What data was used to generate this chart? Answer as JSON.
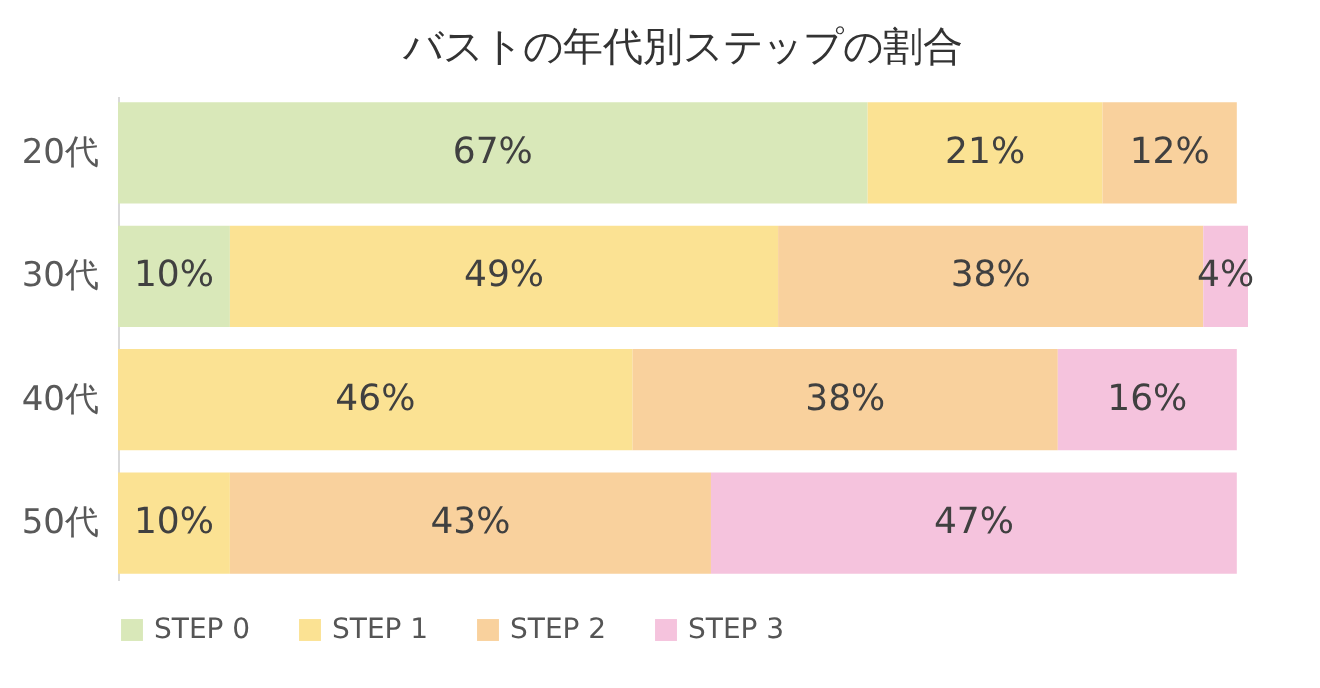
{
  "chart_data": {
    "type": "bar",
    "orientation": "horizontal",
    "stacked": true,
    "title": "バストの年代別ステップの割合",
    "categories": [
      "20代",
      "30代",
      "40代",
      "50代"
    ],
    "series": [
      {
        "name": "STEP 0",
        "color": "#d9e8b9",
        "values": [
          67,
          10,
          null,
          null
        ],
        "value_labels": [
          "67%",
          "10%",
          null,
          null
        ]
      },
      {
        "name": "STEP 1",
        "color": "#fbe293",
        "values": [
          21,
          49,
          46,
          10
        ],
        "value_labels": [
          "21%",
          "49%",
          "46%",
          "10%"
        ]
      },
      {
        "name": "STEP 2",
        "color": "#f9d19d",
        "values": [
          12,
          38,
          38,
          43
        ],
        "value_labels": [
          "12%",
          "38%",
          "38%",
          "43%"
        ]
      },
      {
        "name": "STEP 3",
        "color": "#f5c3dd",
        "values": [
          null,
          4,
          16,
          47
        ],
        "value_labels": [
          null,
          "4%",
          "16%",
          "47%"
        ]
      }
    ],
    "legend": "bottom",
    "grid": false
  }
}
